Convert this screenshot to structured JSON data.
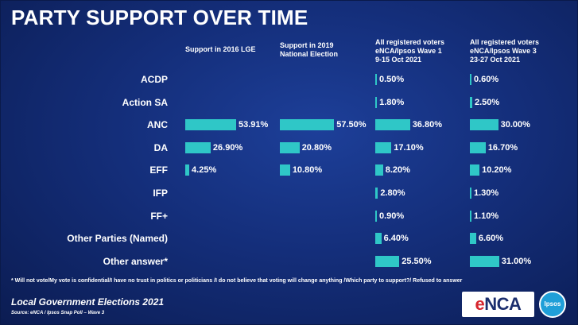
{
  "header": {
    "title": "PARTY SUPPORT OVER TIME"
  },
  "chart_data": {
    "type": "bar",
    "orientation": "horizontal",
    "categories": [
      "ACDP",
      "Action SA",
      "ANC",
      "DA",
      "EFF",
      "IFP",
      "FF+",
      "Other Parties (Named)",
      "Other answer*"
    ],
    "series": [
      {
        "name": "Support in 2016 LGE",
        "values": [
          null,
          null,
          53.91,
          26.9,
          4.25,
          null,
          null,
          null,
          null
        ],
        "labels": [
          "",
          "",
          "53.91%",
          "26.90%",
          "4.25%",
          "",
          "",
          "",
          ""
        ]
      },
      {
        "name": "Support in 2019 National Election",
        "values": [
          null,
          null,
          57.5,
          20.8,
          10.8,
          null,
          null,
          null,
          null
        ],
        "labels": [
          "",
          "",
          "57.50%",
          "20.80%",
          "10.80%",
          "",
          "",
          "",
          ""
        ]
      },
      {
        "name": "All registered voters eNCA/Ipsos Wave 1 9-15 Oct 2021",
        "values": [
          0.5,
          1.8,
          36.8,
          17.1,
          8.2,
          2.8,
          0.9,
          6.4,
          25.5
        ],
        "labels": [
          "0.50%",
          "1.80%",
          "36.80%",
          "17.10%",
          "8.20%",
          "2.80%",
          "0.90%",
          "6.40%",
          "25.50%"
        ]
      },
      {
        "name": "All registered voters eNCA/Ipsos Wave 3 23-27 Oct 2021",
        "values": [
          0.6,
          2.5,
          30.0,
          16.7,
          10.2,
          1.3,
          1.1,
          6.6,
          31.0
        ],
        "labels": [
          "0.60%",
          "2.50%",
          "30.00%",
          "16.70%",
          "10.20%",
          "1.30%",
          "1.10%",
          "6.60%",
          "31.00%"
        ]
      }
    ],
    "column_headers": [
      [
        "Support in 2016 LGE"
      ],
      [
        "Support in 2019",
        "National Election"
      ],
      [
        "All registered voters",
        "eNCA/Ipsos Wave 1",
        "9-15 Oct 2021"
      ],
      [
        "All registered voters",
        "eNCA/Ipsos Wave 3",
        "23-27 Oct 2021"
      ]
    ],
    "xlim": [
      0,
      60
    ],
    "colors": {
      "bar": "#2fc7c7"
    }
  },
  "footnote": "* Will not vote/My vote is confidential/I have no trust in politics or politicians /I do not believe that voting will change anything /Which party to support?/ Refused to answer",
  "footer": {
    "title": "Local Government Elections 2021",
    "source": "Source: eNCA / Ipsos Snap Poll – Wave 3"
  },
  "logos": {
    "enca_e": "e",
    "enca_rest": "NCA",
    "ipsos": "Ipsos"
  }
}
